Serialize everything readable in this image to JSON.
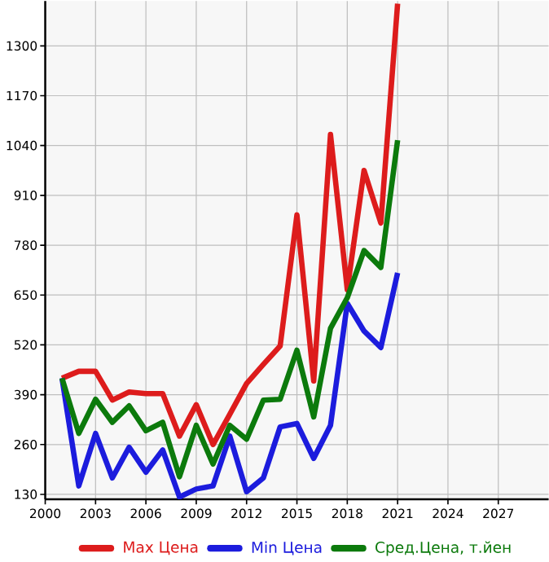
{
  "chart_data": {
    "type": "line",
    "x": [
      2001,
      2002,
      2003,
      2004,
      2005,
      2006,
      2007,
      2008,
      2009,
      2010,
      2011,
      2012,
      2013,
      2014,
      2015,
      2016,
      2017,
      2018,
      2019,
      2020,
      2021
    ],
    "series": [
      {
        "name": "Max Цена",
        "color": "#dd1c1c",
        "values": [
          433,
          451,
          451,
          376,
          397,
          393,
          393,
          282,
          364,
          260,
          339,
          419,
          469,
          517,
          859,
          426,
          1069,
          664,
          975,
          838,
          1410
        ]
      },
      {
        "name": "Min Цена",
        "color": "#1c1cdd",
        "values": [
          433,
          152,
          289,
          173,
          253,
          188,
          246,
          123,
          144,
          152,
          282,
          137,
          173,
          306,
          315,
          224,
          310,
          628,
          556,
          513,
          708
        ]
      },
      {
        "name": "Сред.Цена, т.йен",
        "color": "#0c7a0c",
        "values": [
          433,
          289,
          378,
          318,
          361,
          296,
          318,
          176,
          310,
          209,
          310,
          274,
          376,
          378,
          506,
          332,
          563,
          643,
          766,
          722,
          1054
        ]
      }
    ],
    "xlim": [
      2000,
      2030
    ],
    "ylim": [
      117,
      1417
    ],
    "xticks": [
      2000,
      2003,
      2006,
      2009,
      2012,
      2015,
      2018,
      2021,
      2024,
      2027
    ],
    "yticks": [
      130,
      260,
      390,
      520,
      650,
      780,
      910,
      1040,
      1170,
      1300
    ],
    "grid": true,
    "legend": "bottom",
    "marker": "none",
    "line_style": "solid"
  }
}
